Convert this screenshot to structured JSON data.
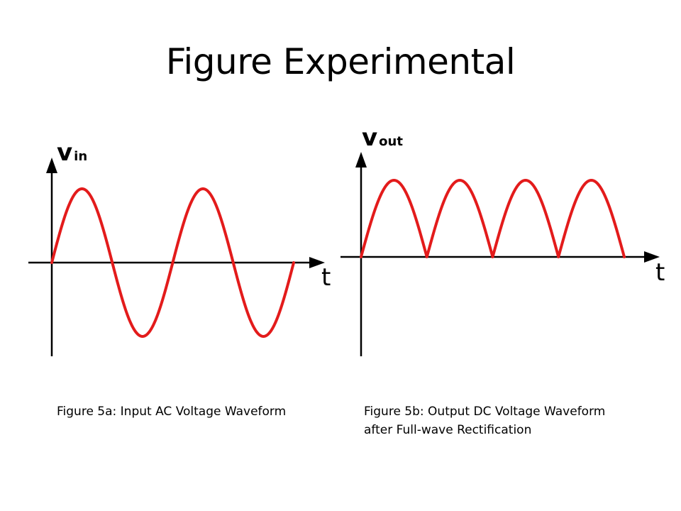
{
  "title": "Figure Experimental",
  "figures": [
    {
      "vlabel_main": "v",
      "vlabel_sub": "in",
      "tlabel": "t",
      "wave_color": "#e31b1b",
      "waveform": "sine",
      "cycles": 2,
      "caption_lines": [
        "Figure 5a: Input AC Voltage Waveform"
      ]
    },
    {
      "vlabel_main": "v",
      "vlabel_sub": "out",
      "tlabel": "t",
      "wave_color": "#e31b1b",
      "waveform": "full-wave rectified sine",
      "half_cycles": 4,
      "caption_lines": [
        "Figure 5b: Output DC Voltage Waveform",
        "after Full-wave Rectification"
      ]
    }
  ]
}
